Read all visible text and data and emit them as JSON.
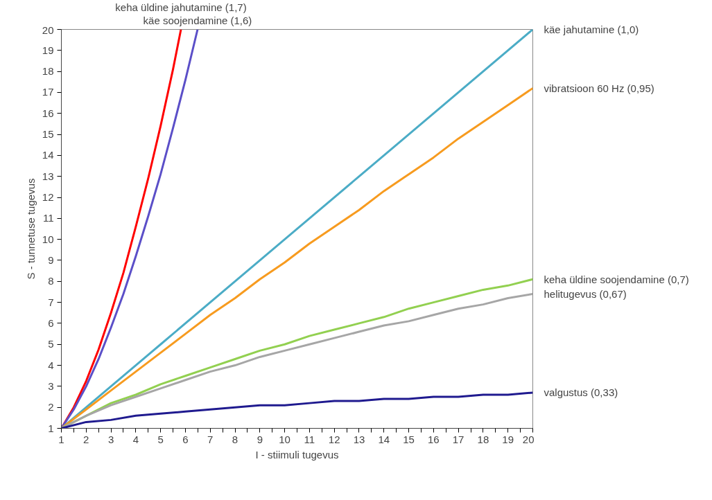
{
  "chart_data": {
    "type": "line",
    "xlabel": "I - stiimuli tugevus",
    "ylabel": "S - tunnetuse tugevus",
    "xlim": [
      1,
      20
    ],
    "ylim": [
      1,
      20
    ],
    "xticks": [
      1,
      {
        "value": 1.5,
        "label": null
      },
      2,
      {
        "value": 2.5,
        "label": null
      },
      3,
      {
        "value": 3.5,
        "label": null
      },
      4,
      {
        "value": 4.5,
        "label": null
      },
      5,
      {
        "value": 5.5,
        "label": null
      },
      6,
      {
        "value": 6.5,
        "label": null
      },
      7,
      {
        "value": 7.5,
        "label": null
      },
      8,
      {
        "value": 8.5,
        "label": null
      },
      9,
      {
        "value": 9.5,
        "label": null
      },
      10,
      {
        "value": 10.5,
        "label": null
      },
      11,
      {
        "value": 11.5,
        "label": null
      },
      12,
      {
        "value": 12.5,
        "label": null
      },
      13,
      {
        "value": 13.5,
        "label": null
      },
      14,
      {
        "value": 14.5,
        "label": null
      },
      15,
      {
        "value": 15.5,
        "label": null
      },
      16,
      {
        "value": 16.5,
        "label": null
      },
      17,
      {
        "value": 17.5,
        "label": null
      },
      18,
      {
        "value": 18.5,
        "label": null
      },
      19,
      {
        "value": 19.5,
        "label": null
      },
      20
    ],
    "yticks": [
      1,
      2,
      3,
      4,
      5,
      6,
      7,
      8,
      9,
      10,
      11,
      12,
      13,
      14,
      15,
      16,
      17,
      18,
      19,
      20
    ],
    "grid": false,
    "legend": false,
    "marker": "none",
    "line_style": "solid",
    "series": [
      {
        "name": "keha üldine jahutamine (1,7)",
        "color": "#ff0000",
        "x": [
          1,
          1.5,
          2,
          2.5,
          3,
          3.5,
          4,
          4.5,
          5,
          5.5,
          5.82
        ],
        "values": [
          1,
          2.0,
          3.25,
          4.75,
          6.5,
          8.4,
          10.6,
          12.9,
          15.4,
          18.1,
          20
        ]
      },
      {
        "name": "käe soojendamine (1,6)",
        "color": "#5b4fc8",
        "x": [
          1,
          1.5,
          2,
          2.5,
          3,
          3.5,
          4,
          4.5,
          5,
          5.5,
          6,
          6.49
        ],
        "values": [
          1,
          1.9,
          3.0,
          4.3,
          5.8,
          7.4,
          9.2,
          11.1,
          13.1,
          15.3,
          17.6,
          20
        ]
      },
      {
        "name": "käe jahutamine  (1,0)",
        "color": "#4bacc6",
        "x": [
          1,
          5,
          10,
          15,
          20
        ],
        "values": [
          1,
          5,
          10,
          15,
          20
        ]
      },
      {
        "name": "vibratsioon 60 Hz  (0,95)",
        "color": "#f79b1f",
        "x": [
          1,
          2,
          3,
          4,
          5,
          6,
          7,
          8,
          9,
          10,
          11,
          12,
          13,
          14,
          15,
          16,
          17,
          18,
          19,
          20
        ],
        "values": [
          1,
          1.9,
          2.8,
          3.7,
          4.6,
          5.5,
          6.4,
          7.2,
          8.1,
          8.9,
          9.8,
          10.6,
          11.4,
          12.3,
          13.1,
          13.9,
          14.8,
          15.6,
          16.4,
          17.2
        ]
      },
      {
        "name": "keha üldine soojendamine (0,7)",
        "color": "#92d050",
        "x": [
          1,
          2,
          3,
          4,
          5,
          6,
          7,
          8,
          9,
          10,
          11,
          12,
          13,
          14,
          15,
          16,
          17,
          18,
          19,
          20
        ],
        "values": [
          1,
          1.6,
          2.2,
          2.6,
          3.1,
          3.5,
          3.9,
          4.3,
          4.7,
          5.0,
          5.4,
          5.7,
          6.0,
          6.3,
          6.7,
          7.0,
          7.3,
          7.6,
          7.8,
          8.1
        ]
      },
      {
        "name": "helitugevus (0,67)",
        "color": "#a6a6a6",
        "x": [
          1,
          2,
          3,
          4,
          5,
          6,
          7,
          8,
          9,
          10,
          11,
          12,
          13,
          14,
          15,
          16,
          17,
          18,
          19,
          20
        ],
        "values": [
          1,
          1.6,
          2.1,
          2.5,
          2.9,
          3.3,
          3.7,
          4.0,
          4.4,
          4.7,
          5.0,
          5.3,
          5.6,
          5.9,
          6.1,
          6.4,
          6.7,
          6.9,
          7.2,
          7.4
        ]
      },
      {
        "name": "valgustus (0,33)",
        "color": "#1f1a8f",
        "x": [
          1,
          2,
          3,
          4,
          5,
          6,
          7,
          8,
          9,
          10,
          11,
          12,
          13,
          14,
          15,
          16,
          17,
          18,
          19,
          20
        ],
        "values": [
          1,
          1.3,
          1.4,
          1.6,
          1.7,
          1.8,
          1.9,
          2.0,
          2.1,
          2.1,
          2.2,
          2.3,
          2.3,
          2.4,
          2.4,
          2.5,
          2.5,
          2.6,
          2.6,
          2.7
        ]
      }
    ]
  }
}
